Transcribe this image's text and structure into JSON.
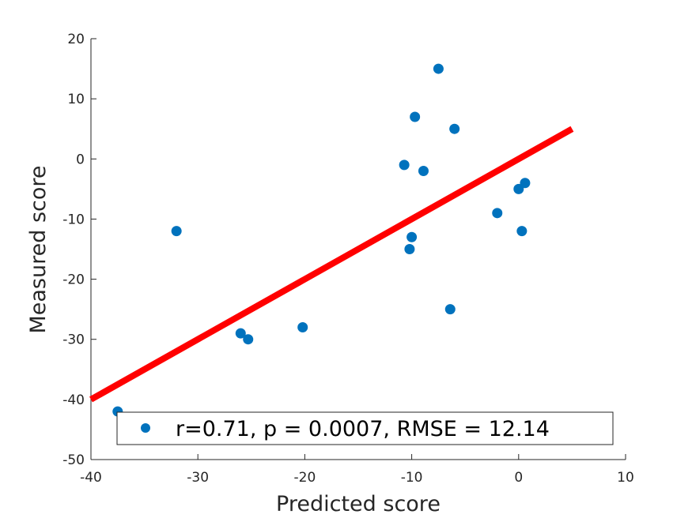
{
  "chart_data": {
    "type": "scatter",
    "xlabel": "Predicted score",
    "ylabel": "Measured score",
    "xlim": [
      -40,
      10
    ],
    "ylim": [
      -50,
      20
    ],
    "xticks": [
      -40,
      -30,
      -20,
      -10,
      0,
      10
    ],
    "yticks": [
      -50,
      -40,
      -30,
      -20,
      -10,
      0,
      10,
      20
    ],
    "xtick_labels": [
      "-40",
      "-30",
      "-20",
      "-10",
      "0",
      "10"
    ],
    "ytick_labels": [
      "-50",
      "-40",
      "-30",
      "-20",
      "-10",
      "0",
      "10",
      "20"
    ],
    "grid": false,
    "series": [
      {
        "name": "r=0.71, p = 0.0007, RMSE = 12.14",
        "kind": "points",
        "color": "#0072BD",
        "points": [
          {
            "x": -37.5,
            "y": -42
          },
          {
            "x": -32.0,
            "y": -12
          },
          {
            "x": -26.0,
            "y": -29
          },
          {
            "x": -25.3,
            "y": -30
          },
          {
            "x": -20.2,
            "y": -28
          },
          {
            "x": -10.7,
            "y": -1
          },
          {
            "x": -10.2,
            "y": -15
          },
          {
            "x": -10.0,
            "y": -13
          },
          {
            "x": -9.7,
            "y": 7
          },
          {
            "x": -8.9,
            "y": -2
          },
          {
            "x": -7.5,
            "y": 15
          },
          {
            "x": -6.4,
            "y": -25
          },
          {
            "x": -6.0,
            "y": 5
          },
          {
            "x": -2.0,
            "y": -9
          },
          {
            "x": 0.0,
            "y": -5
          },
          {
            "x": 0.3,
            "y": -12
          },
          {
            "x": 0.6,
            "y": -4
          }
        ]
      },
      {
        "kind": "line",
        "color": "#FF0000",
        "points": [
          {
            "x": -40,
            "y": -40
          },
          {
            "x": 5,
            "y": 5
          }
        ]
      }
    ],
    "legend": {
      "position": "bottom-right",
      "text": "r=0.71, p = 0.0007, RMSE = 12.14"
    }
  }
}
